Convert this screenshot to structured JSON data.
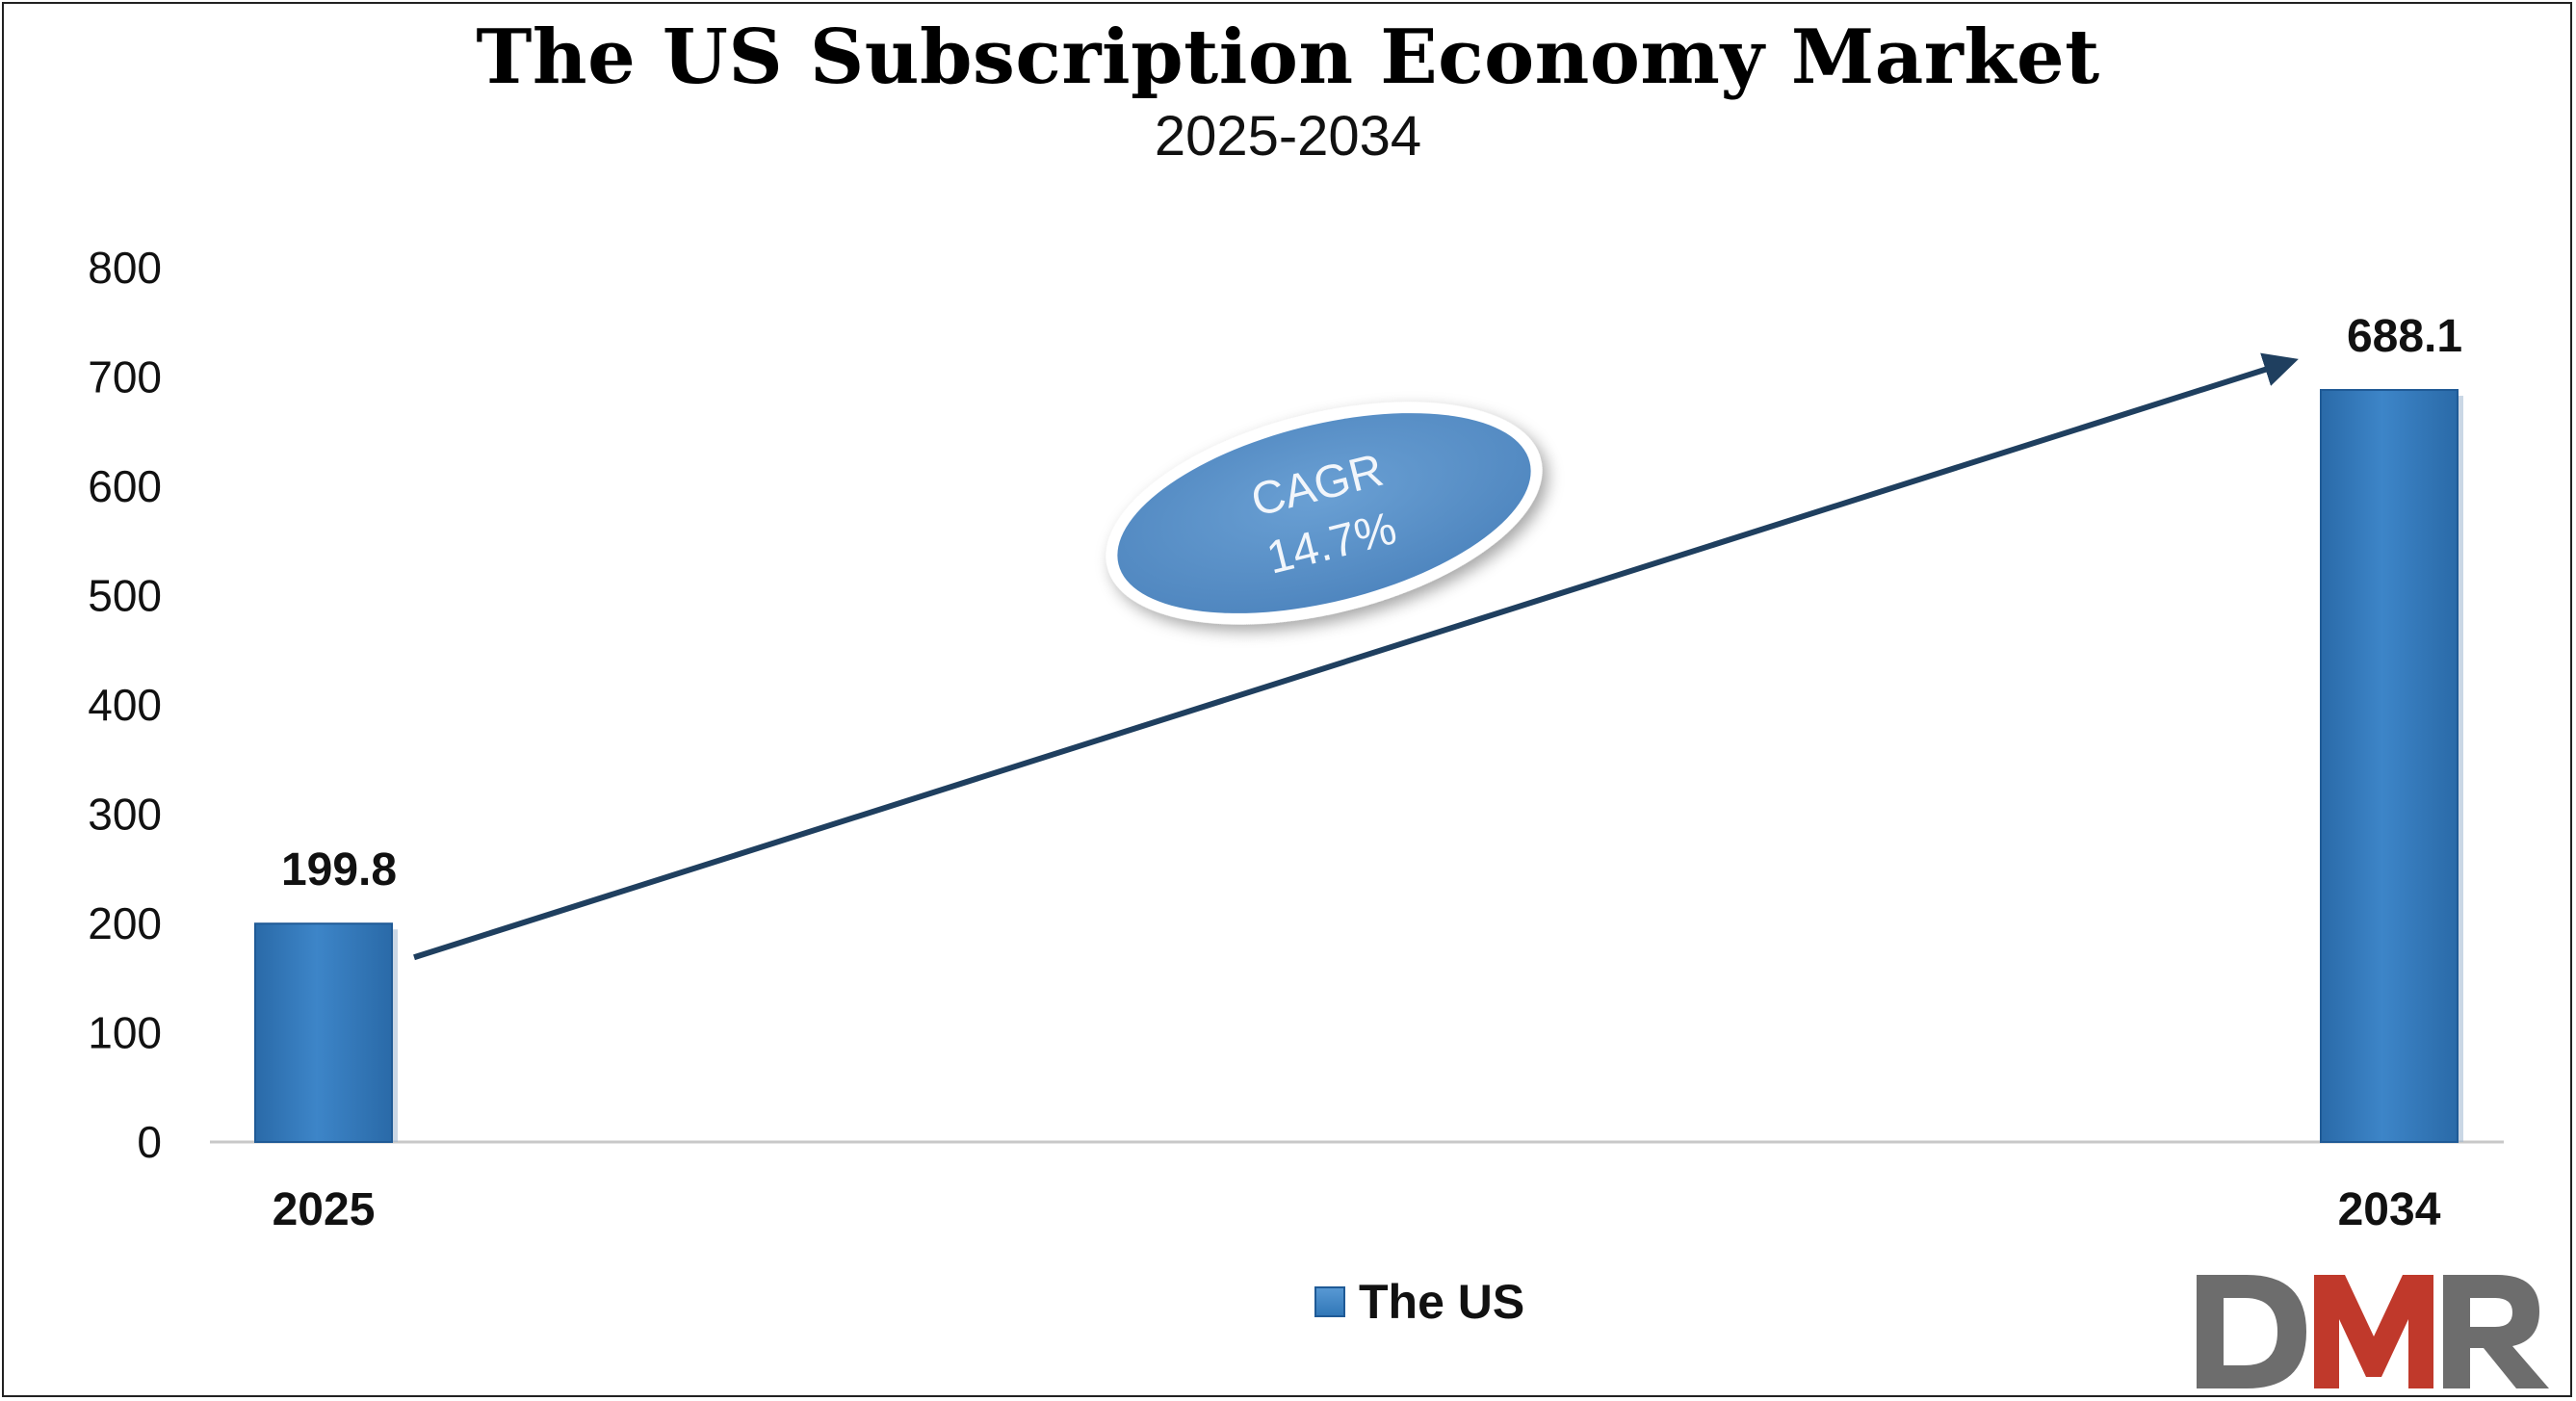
{
  "title": "The US Subscription Economy Market",
  "subtitle": "2025-2034",
  "chart_data": {
    "type": "bar",
    "title": "The US Subscription Economy Market",
    "subtitle": "2025-2034",
    "categories": [
      "2025",
      "2034"
    ],
    "series": [
      {
        "name": "The US",
        "values": [
          199.8,
          688.1
        ],
        "color": "#2e75b6"
      }
    ],
    "data_labels": [
      "199.8",
      "688.1"
    ],
    "ylim": [
      0,
      800
    ],
    "yticks": [
      0,
      100,
      200,
      300,
      400,
      500,
      600,
      700,
      800
    ],
    "grid": false,
    "legend": "bottom-center",
    "annotation": {
      "line1": "CAGR",
      "line2": "14.7%",
      "color": "#5b8fc6"
    },
    "trend_arrow_color": "#1f3f5f"
  },
  "legend": {
    "label": "The US"
  },
  "logo": {
    "text": "DMR",
    "colors": {
      "D": "#6d6d6d",
      "M": "#c0392b",
      "R": "#6d6d6d"
    }
  }
}
